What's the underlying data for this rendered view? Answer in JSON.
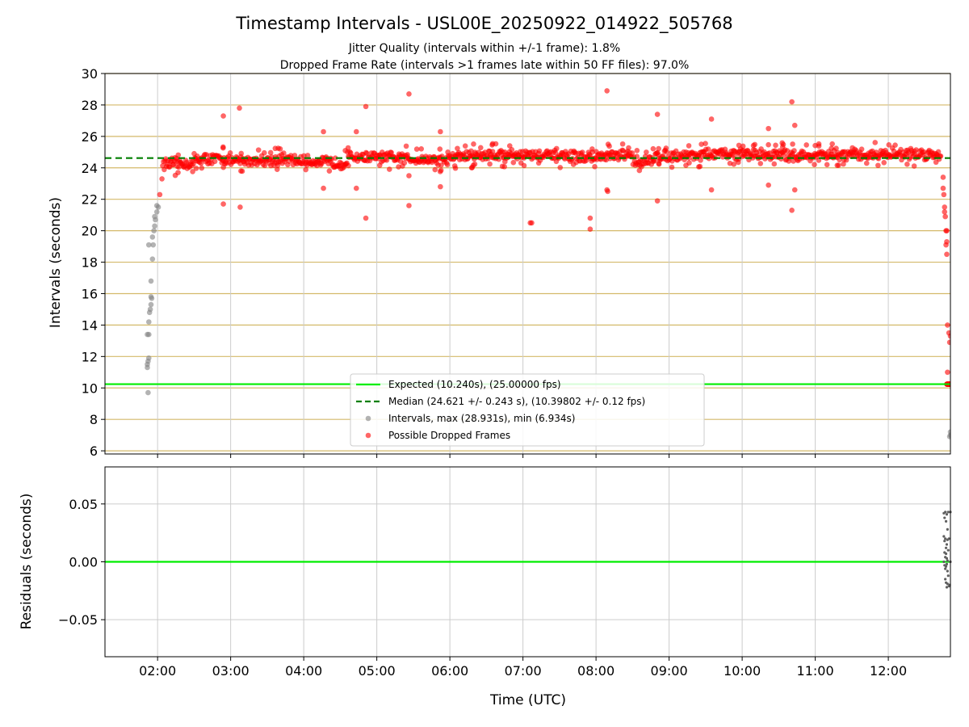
{
  "chart_data": {
    "type": "scatter",
    "title": "Timestamp Intervals - USL00E_20250922_014922_505768",
    "subtitle_lines": [
      "Jitter Quality (intervals within +/-1 frame): 1.8%",
      "Dropped Frame Rate (intervals >1 frames late within 50 FF files): 97.0%"
    ],
    "colors": {
      "expected": "#00ee00",
      "median": "#007f00",
      "intervals": "#808080",
      "dropped": "#ff0000",
      "grid_top": "#d4b96a",
      "grid_bottom": "#cccccc",
      "residual_points": "#606060"
    },
    "xaxis": {
      "label": "Time (UTC)",
      "range_hours": [
        1.28,
        12.85
      ],
      "ticks": [
        {
          "h": 2,
          "label": "02:00"
        },
        {
          "h": 3,
          "label": "03:00"
        },
        {
          "h": 4,
          "label": "04:00"
        },
        {
          "h": 5,
          "label": "05:00"
        },
        {
          "h": 6,
          "label": "06:00"
        },
        {
          "h": 7,
          "label": "07:00"
        },
        {
          "h": 8,
          "label": "08:00"
        },
        {
          "h": 9,
          "label": "09:00"
        },
        {
          "h": 10,
          "label": "10:00"
        },
        {
          "h": 11,
          "label": "11:00"
        },
        {
          "h": 12,
          "label": "12:00"
        }
      ]
    },
    "top": {
      "ylabel": "Intervals (seconds)",
      "ylim": [
        5.8,
        30
      ],
      "yticks": [
        {
          "v": 6,
          "label": "6"
        },
        {
          "v": 8,
          "label": "8"
        },
        {
          "v": 10,
          "label": "10"
        },
        {
          "v": 12,
          "label": "12"
        },
        {
          "v": 14,
          "label": "14"
        },
        {
          "v": 16,
          "label": "16"
        },
        {
          "v": 18,
          "label": "18"
        },
        {
          "v": 20,
          "label": "20"
        },
        {
          "v": 22,
          "label": "22"
        },
        {
          "v": 24,
          "label": "24"
        },
        {
          "v": 26,
          "label": "26"
        },
        {
          "v": 28,
          "label": "28"
        },
        {
          "v": 30,
          "label": "30"
        }
      ],
      "expected_value": 10.24,
      "median_value": 24.621,
      "legend": [
        {
          "kind": "line",
          "key": "expected",
          "label": "Expected (10.240s), (25.00000 fps)"
        },
        {
          "kind": "dashed",
          "key": "median",
          "label": "Median (24.621 +/- 0.243 s), (10.39802 +/- 0.12 fps)"
        },
        {
          "kind": "dot",
          "key": "intervals",
          "label": "Intervals, max (28.931s), min (6.934s)"
        },
        {
          "kind": "dot",
          "key": "dropped",
          "label": "Possible Dropped Frames"
        }
      ],
      "gray_points": [
        [
          1.87,
          9.7
        ],
        [
          1.86,
          11.3
        ],
        [
          1.86,
          11.5
        ],
        [
          1.87,
          11.7
        ],
        [
          1.88,
          11.9
        ],
        [
          1.86,
          13.4
        ],
        [
          1.88,
          13.4
        ],
        [
          1.88,
          14.2
        ],
        [
          1.89,
          14.8
        ],
        [
          1.9,
          15.0
        ],
        [
          1.91,
          15.3
        ],
        [
          1.92,
          15.7
        ],
        [
          1.91,
          15.8
        ],
        [
          1.91,
          16.8
        ],
        [
          1.93,
          18.2
        ],
        [
          1.88,
          19.1
        ],
        [
          1.94,
          19.1
        ],
        [
          1.93,
          19.6
        ],
        [
          1.95,
          20.0
        ],
        [
          1.96,
          20.3
        ],
        [
          1.97,
          20.7
        ],
        [
          1.96,
          20.9
        ],
        [
          1.99,
          21.2
        ],
        [
          2.01,
          21.5
        ],
        [
          1.99,
          21.6
        ],
        [
          12.85,
          7.0
        ],
        [
          12.85,
          7.2
        ],
        [
          12.84,
          6.9
        ]
      ],
      "outliers": [
        [
          2.9,
          27.3
        ],
        [
          3.12,
          27.8
        ],
        [
          2.9,
          21.7
        ],
        [
          3.13,
          21.5
        ],
        [
          4.27,
          26.3
        ],
        [
          4.27,
          22.7
        ],
        [
          4.72,
          26.3
        ],
        [
          4.72,
          22.7
        ],
        [
          4.85,
          27.9
        ],
        [
          4.85,
          20.8
        ],
        [
          5.44,
          28.7
        ],
        [
          5.44,
          23.5
        ],
        [
          5.44,
          21.6
        ],
        [
          5.87,
          26.3
        ],
        [
          5.87,
          22.8
        ],
        [
          7.1,
          20.5
        ],
        [
          7.12,
          20.5
        ],
        [
          7.92,
          20.8
        ],
        [
          7.92,
          20.1
        ],
        [
          8.15,
          28.9
        ],
        [
          8.15,
          22.6
        ],
        [
          8.16,
          22.5
        ],
        [
          8.84,
          27.4
        ],
        [
          8.84,
          21.9
        ],
        [
          9.58,
          27.1
        ],
        [
          9.58,
          22.6
        ],
        [
          10.36,
          26.5
        ],
        [
          10.36,
          22.9
        ],
        [
          10.68,
          28.2
        ],
        [
          10.72,
          26.7
        ],
        [
          10.72,
          22.6
        ],
        [
          10.68,
          21.3
        ],
        [
          2.06,
          23.3
        ],
        [
          2.03,
          22.3
        ],
        [
          2.28,
          23.7
        ],
        [
          12.75,
          23.4
        ],
        [
          12.75,
          22.7
        ],
        [
          12.76,
          22.3
        ],
        [
          12.77,
          21.5
        ],
        [
          12.77,
          21.2
        ],
        [
          12.78,
          20.9
        ],
        [
          12.79,
          20.0
        ],
        [
          12.8,
          20.0
        ],
        [
          12.8,
          19.3
        ],
        [
          12.79,
          19.1
        ],
        [
          12.8,
          18.5
        ],
        [
          12.81,
          14.0
        ],
        [
          12.83,
          13.5
        ],
        [
          12.85,
          13.3
        ],
        [
          12.84,
          12.9
        ],
        [
          12.81,
          11.0
        ]
      ],
      "dropped_baseline": {
        "value": 10.24,
        "from": 12.8,
        "to": 12.85
      }
    },
    "bottom": {
      "ylabel": "Residuals (seconds)",
      "ylim": [
        -0.082,
        0.082
      ],
      "yticks": [
        {
          "v": 0.05,
          "label": "0.05"
        },
        {
          "v": 0.0,
          "label": "0.00"
        },
        {
          "v": -0.05,
          "label": "−0.05"
        }
      ],
      "zero_value": 0.0,
      "points": [
        [
          12.76,
          0.042
        ],
        [
          12.77,
          0.038
        ],
        [
          12.78,
          0.043
        ],
        [
          12.79,
          0.035
        ],
        [
          12.8,
          0.041
        ],
        [
          12.81,
          0.028
        ],
        [
          12.82,
          0.043
        ],
        [
          12.76,
          0.022
        ],
        [
          12.77,
          0.018
        ],
        [
          12.78,
          0.02
        ],
        [
          12.79,
          0.012
        ],
        [
          12.8,
          0.015
        ],
        [
          12.81,
          0.019
        ],
        [
          12.82,
          0.01
        ],
        [
          12.83,
          0.02
        ],
        [
          12.77,
          0.008
        ],
        [
          12.78,
          0.004
        ],
        [
          12.79,
          0.007
        ],
        [
          12.8,
          0.003
        ],
        [
          12.81,
          0.001
        ],
        [
          12.76,
          0.0
        ],
        [
          12.77,
          -0.003
        ],
        [
          12.78,
          -0.006
        ],
        [
          12.79,
          -0.004
        ],
        [
          12.8,
          -0.002
        ],
        [
          12.81,
          -0.008
        ],
        [
          12.82,
          -0.012
        ],
        [
          12.78,
          -0.015
        ],
        [
          12.79,
          -0.018
        ],
        [
          12.8,
          -0.022
        ],
        [
          12.81,
          -0.019
        ],
        [
          12.83,
          -0.021
        ],
        [
          12.84,
          -0.02
        ],
        [
          12.85,
          0.0
        ],
        [
          12.85,
          0.043
        ]
      ]
    }
  }
}
